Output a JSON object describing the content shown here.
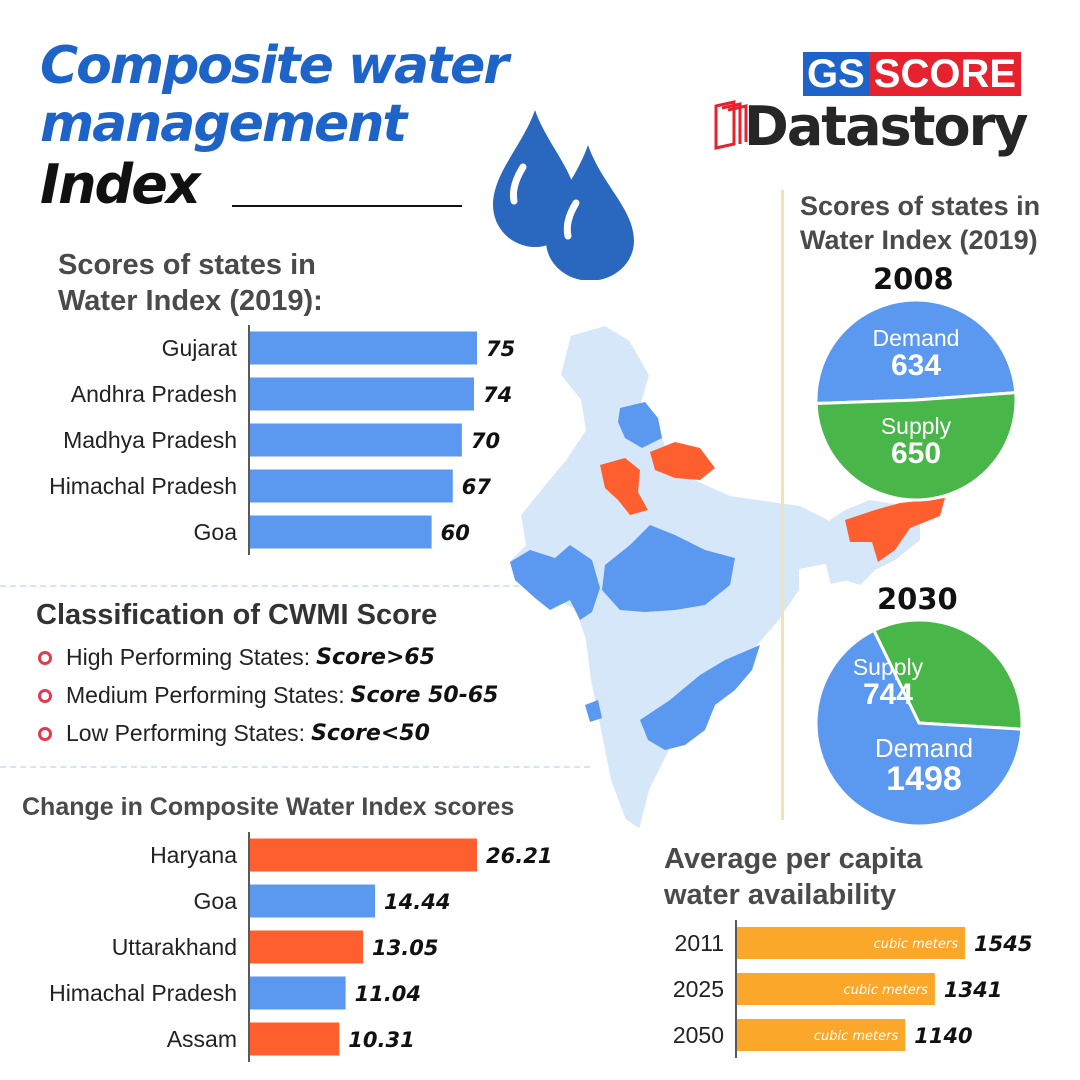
{
  "header": {
    "title_line1": "Composite water",
    "title_line2": "management",
    "title_line3": "Index"
  },
  "logo": {
    "gs": "GS",
    "score": "SCORE",
    "datastory": "Datastory"
  },
  "colors": {
    "blue": "#5b98f0",
    "orange": "#ff5f2e",
    "green": "#49b649",
    "amber": "#fba72a",
    "title_blue": "#1d63c8",
    "drop_blue": "#2a67be",
    "map_light": "#d6e7f9",
    "map_blue": "#5b98f0",
    "map_orange": "#ff5f2e"
  },
  "icons": {
    "drops": "water-drop-icon",
    "bullets": "ring-bullet-icon",
    "logo_book": "book-icon"
  },
  "scores_section": {
    "heading_line1": "Scores of states in",
    "heading_line2": "Water Index (2019):"
  },
  "classification": {
    "heading": "Classification of CWMI Score",
    "items": [
      {
        "label": "High Performing States:",
        "value": "Score>65"
      },
      {
        "label": "Medium Performing States:",
        "value": "Score 50-65"
      },
      {
        "label": "Low Performing States:",
        "value": "Score<50"
      }
    ]
  },
  "change_section": {
    "heading": "Change in Composite Water Index scores"
  },
  "right_section": {
    "heading_line1": "Scores of states in",
    "heading_line2": "Water Index (2019)"
  },
  "percapita_section": {
    "heading_line1": "Average per capita",
    "heading_line2": "water availability"
  },
  "chart_data": [
    {
      "type": "bar",
      "orientation": "horizontal",
      "title": "Scores of states in Water Index (2019):",
      "categories": [
        "Gujarat",
        "Andhra Pradesh",
        "Madhya Pradesh",
        "Himachal Pradesh",
        "Goa"
      ],
      "values": [
        75,
        74,
        70,
        67,
        60
      ],
      "value_labels": [
        "75",
        "74",
        "70",
        "67",
        "60"
      ],
      "colors": [
        "#5b98f0",
        "#5b98f0",
        "#5b98f0",
        "#5b98f0",
        "#5b98f0"
      ],
      "xlim": [
        0,
        75
      ],
      "grid": false
    },
    {
      "type": "bar",
      "orientation": "horizontal",
      "title": "Change in Composite Water Index scores",
      "categories": [
        "Haryana",
        "Goa",
        "Uttarakhand",
        "Himachal Pradesh",
        "Assam"
      ],
      "values": [
        26.21,
        14.44,
        13.05,
        11.04,
        10.31
      ],
      "value_labels": [
        "26.21",
        "14.44",
        "13.05",
        "11.04",
        "10.31"
      ],
      "colors": [
        "#ff5f2e",
        "#5b98f0",
        "#ff5f2e",
        "#5b98f0",
        "#ff5f2e"
      ],
      "xlim": [
        0,
        26.21
      ],
      "grid": false
    },
    {
      "type": "pie",
      "title": "2008",
      "slices": [
        {
          "label": "Demand",
          "value": 634,
          "color": "#5b98f0"
        },
        {
          "label": "Supply",
          "value": 650,
          "color": "#49b649"
        }
      ]
    },
    {
      "type": "pie",
      "title": "2030",
      "slices": [
        {
          "label": "Supply",
          "value": 744,
          "color": "#49b649"
        },
        {
          "label": "Demand",
          "value": 1498,
          "color": "#5b98f0"
        }
      ]
    },
    {
      "type": "bar",
      "orientation": "horizontal",
      "title": "Average per capita water availability",
      "categories": [
        "2011",
        "2025",
        "2050"
      ],
      "values": [
        1545,
        1341,
        1140
      ],
      "value_labels": [
        "1545",
        "1341",
        "1140"
      ],
      "unit": "cubic meters",
      "colors": [
        "#fba72a",
        "#fba72a",
        "#fba72a"
      ],
      "xlim": [
        0,
        1545
      ],
      "grid": false
    }
  ]
}
